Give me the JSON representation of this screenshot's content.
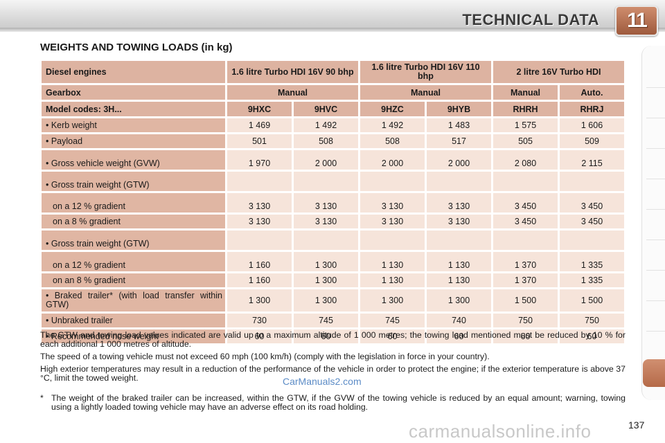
{
  "header": {
    "title": "TECHNICAL DATA",
    "chapter": "11"
  },
  "section_title": "WEIGHTS AND TOWING LOADS (in kg)",
  "table": {
    "engine_label": "Diesel engines",
    "engines": [
      "1.6 litre Turbo HDI 16V 90 bhp",
      "1.6 litre Turbo HDI 16V 110 bhp",
      "2 litre 16V Turbo HDI"
    ],
    "gearbox_label": "Gearbox",
    "gearboxes": [
      "Manual",
      "Manual",
      "Manual",
      "Auto."
    ],
    "model_label": "Model codes: 3H...",
    "models": [
      "9HXC",
      "9HVC",
      "9HZC",
      "9HYB",
      "RHRH",
      "RHRJ"
    ],
    "rows": [
      {
        "label": "• Kerb weight",
        "values": [
          "1 469",
          "1 492",
          "1 492",
          "1 483",
          "1 575",
          "1 606"
        ]
      },
      {
        "label": "• Payload",
        "values": [
          "501",
          "508",
          "508",
          "517",
          "505",
          "509"
        ]
      },
      {
        "label": "• Gross vehicle weight (GVW)",
        "values": [
          "1 970",
          "2 000",
          "2 000",
          "2 000",
          "2 080",
          "2 115"
        ]
      },
      {
        "label": "• Gross train weight (GTW)",
        "values": [
          "",
          "",
          "",
          "",
          "",
          ""
        ]
      },
      {
        "label": "on a 12 % gradient",
        "values": [
          "3 130",
          "3 130",
          "3 130",
          "3 130",
          "3 450",
          "3 450"
        ]
      },
      {
        "label": "on a 8 % gradient",
        "values": [
          "3 130",
          "3 130",
          "3 130",
          "3 130",
          "3 450",
          "3 450"
        ]
      },
      {
        "label": "• Gross train weight (GTW)",
        "values": [
          "",
          "",
          "",
          "",
          "",
          ""
        ]
      },
      {
        "label": "on a 12 % gradient",
        "values": [
          "1 160",
          "1 300",
          "1 130",
          "1 130",
          "1 370",
          "1 335"
        ]
      },
      {
        "label": "on an 8 % gradient",
        "values": [
          "1 160",
          "1 300",
          "1 130",
          "1 130",
          "1 370",
          "1 335"
        ]
      },
      {
        "label": "• Braked trailer* (with load transfer within GTW)",
        "values": [
          "1 300",
          "1 300",
          "1 300",
          "1 300",
          "1 500",
          "1 500"
        ]
      },
      {
        "label": "• Unbraked trailer",
        "values": [
          "730",
          "745",
          "745",
          "740",
          "750",
          "750"
        ]
      },
      {
        "label": "• Recommended nose weight",
        "values": [
          "60",
          "60",
          "60",
          "60",
          "60",
          "60"
        ]
      }
    ]
  },
  "notes": [
    "The GTW and towing load values indicated are valid up to a maximum altitude of 1 000 metres; the towing load mentioned must be reduced by 10 % for each additional 1 000 metres of altitude.",
    "The speed of a towing vehicle must not exceed 60 mph (100 km/h) (comply with the legislation in force in your country).",
    "High exterior temperatures may result in a reduction of the performance of the vehicle in order to protect the engine; if the exterior temperature is above 37 °C, limit the towed weight."
  ],
  "footnote": {
    "marker": "*",
    "text": "The weight of the braked trailer can be increased, within the GTW, if the GVW of the towing vehicle is reduced by an equal amount; warning, towing using a lightly loaded towing vehicle may have an adverse effect on its road holding."
  },
  "watermarks": [
    "CarManuals2.com",
    "carmanualsonline.info"
  ],
  "page_number": "137",
  "colors": {
    "header_cell": "#ddb3a1",
    "label_cell": "#e0b6a3",
    "value_cell": "#f6e4da",
    "chapter_badge": "#b56a48"
  }
}
